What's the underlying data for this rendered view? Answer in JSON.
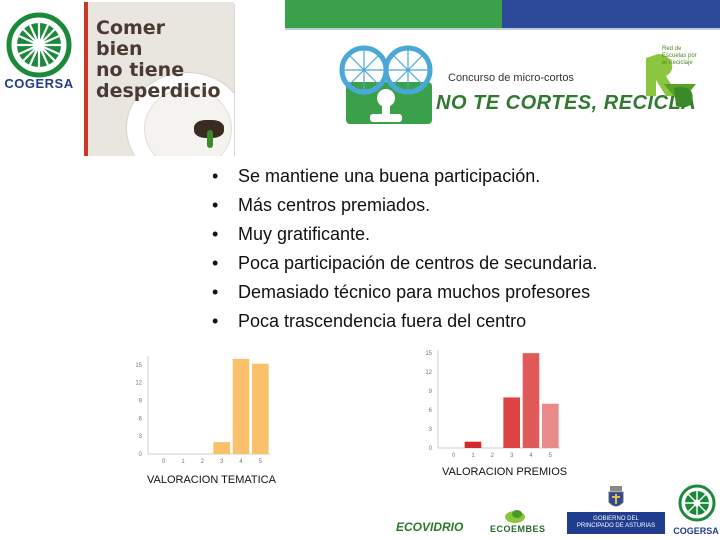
{
  "header": {
    "colors": {
      "green": "#3aa14a",
      "blue": "#2d4a9a"
    }
  },
  "logos": {
    "cogersa_label": "COGERSA",
    "poster_lines": [
      "Comer",
      "bien",
      "no tiene",
      "desperdicio"
    ],
    "contest_subtitle": "Concurso de micro-cortos",
    "contest_title": "NO TE CORTES, RECICLA",
    "rvd_text": "Red de Escuelas por el Reciclaje"
  },
  "bullets": [
    "Se mantiene una buena participación.",
    "Más centros premiados.",
    "Muy gratificante.",
    "Poca participación de centros de secundaria.",
    "Demasiado técnico para muchos profesores",
    "Poca trascendencia fuera del centro"
  ],
  "bullet_symbol": "•",
  "chart_data": [
    {
      "type": "bar",
      "title": "VALORACION TEMATICA",
      "categories": [
        "0",
        "1",
        "2",
        "3",
        "4",
        "5"
      ],
      "values": [
        0,
        0,
        0,
        2,
        16,
        15.2
      ],
      "yticks": [
        "0",
        "3",
        "6",
        "9",
        "12",
        "15"
      ],
      "ylim": [
        0,
        16.5
      ],
      "color": "#fbc16a",
      "grid": false
    },
    {
      "type": "bar",
      "title": "VALORACION PREMIOS",
      "categories": [
        "0",
        "1",
        "2",
        "3",
        "4",
        "5"
      ],
      "values": [
        0,
        1,
        0,
        8,
        15,
        7
      ],
      "yticks": [
        "0",
        "3",
        "6",
        "9",
        "12",
        "15"
      ],
      "ylim": [
        0,
        15.5
      ],
      "colors": [
        "#d42a2a",
        "#d42a2a",
        "#d42a2a",
        "#dd4343",
        "#e05a5a",
        "#e88a88"
      ],
      "grid": false
    }
  ],
  "footer": {
    "ecovidrio": "ECOVIDRIO",
    "ecoembes": "ECOEMBES",
    "gov_line1": "GOBIERNO DEL",
    "gov_line2": "PRINCIPADO DE ASTURIAS",
    "cogersa": "COGERSA"
  }
}
